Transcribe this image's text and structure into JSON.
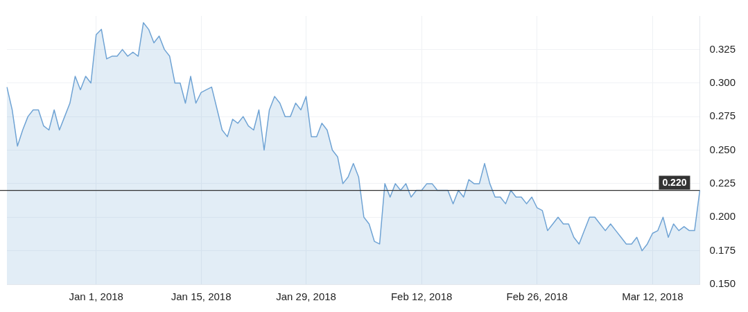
{
  "chart_data": {
    "type": "area",
    "categories": [
      null,
      null,
      null,
      null,
      null,
      null,
      null,
      null,
      null,
      null,
      null,
      null,
      null,
      null,
      null,
      null,
      null,
      "Jan 1, 2018",
      null,
      null,
      null,
      null,
      null,
      null,
      null,
      null,
      null,
      null,
      null,
      null,
      null,
      null,
      null,
      null,
      null,
      null,
      null,
      "Jan 15, 2018",
      null,
      null,
      null,
      null,
      null,
      null,
      null,
      null,
      null,
      null,
      null,
      null,
      null,
      null,
      null,
      null,
      null,
      null,
      null,
      "Jan 29, 2018",
      null,
      null,
      null,
      null,
      null,
      null,
      null,
      null,
      null,
      null,
      null,
      null,
      null,
      null,
      null,
      null,
      null,
      null,
      null,
      null,
      null,
      "Feb 12, 2018",
      null,
      null,
      null,
      null,
      null,
      null,
      null,
      null,
      null,
      null,
      null,
      null,
      null,
      null,
      null,
      null,
      null,
      null,
      null,
      null,
      null,
      "Feb 26, 2018",
      null,
      null,
      null,
      null,
      null,
      null,
      null,
      null,
      null,
      null,
      null,
      null,
      null,
      null,
      null,
      null,
      null,
      null,
      null,
      null,
      null,
      "Mar 12, 2018",
      null,
      null,
      null,
      null,
      null,
      null,
      null,
      null,
      null
    ],
    "series": [
      {
        "color": "#6fa3d4",
        "values": [
          0.297,
          0.28,
          0.253,
          0.265,
          0.275,
          0.28,
          0.28,
          0.268,
          0.265,
          0.28,
          0.265,
          0.275,
          0.285,
          0.305,
          0.295,
          0.305,
          0.3,
          0.336,
          0.34,
          0.318,
          0.32,
          0.32,
          0.325,
          0.32,
          0.323,
          0.32,
          0.345,
          0.34,
          0.33,
          0.335,
          0.325,
          0.32,
          0.3,
          0.3,
          0.285,
          0.305,
          0.285,
          0.293,
          0.295,
          0.297,
          0.281,
          0.265,
          0.26,
          0.273,
          0.27,
          0.275,
          0.268,
          0.265,
          0.28,
          0.25,
          0.28,
          0.29,
          0.285,
          0.275,
          0.275,
          0.285,
          0.28,
          0.29,
          0.26,
          0.26,
          0.27,
          0.265,
          0.25,
          0.245,
          0.225,
          0.23,
          0.24,
          0.23,
          0.2,
          0.195,
          0.182,
          0.18,
          0.225,
          0.215,
          0.225,
          0.22,
          0.225,
          0.215,
          0.22,
          0.22,
          0.225,
          0.225,
          0.22,
          0.22,
          0.22,
          0.21,
          0.22,
          0.215,
          0.228,
          0.225,
          0.225,
          0.24,
          0.225,
          0.215,
          0.215,
          0.21,
          0.22,
          0.215,
          0.215,
          0.21,
          0.215,
          0.207,
          0.205,
          0.19,
          0.195,
          0.2,
          0.195,
          0.195,
          0.185,
          0.18,
          0.19,
          0.2,
          0.2,
          0.195,
          0.19,
          0.195,
          0.19,
          0.185,
          0.18,
          0.18,
          0.185,
          0.175,
          0.18,
          0.188,
          0.19,
          0.2,
          0.185,
          0.195,
          0.19,
          0.193,
          0.19,
          0.19,
          0.22
        ]
      }
    ],
    "ylim": [
      0.15,
      0.35
    ],
    "yticks": [
      {
        "value": 0.15,
        "label": "0.150"
      },
      {
        "value": 0.175,
        "label": "0.175"
      },
      {
        "value": 0.2,
        "label": "0.200"
      },
      {
        "value": 0.225,
        "label": "0.225"
      },
      {
        "value": 0.25,
        "label": "0.250"
      },
      {
        "value": 0.275,
        "label": "0.275"
      },
      {
        "value": 0.3,
        "label": "0.300"
      },
      {
        "value": 0.325,
        "label": "0.325"
      }
    ],
    "ref_lines": [
      {
        "axis": "y",
        "value": 0.22,
        "label": "0.220",
        "color": "#333333"
      }
    ],
    "grid": true,
    "marker": "none",
    "line_style": "solid"
  }
}
